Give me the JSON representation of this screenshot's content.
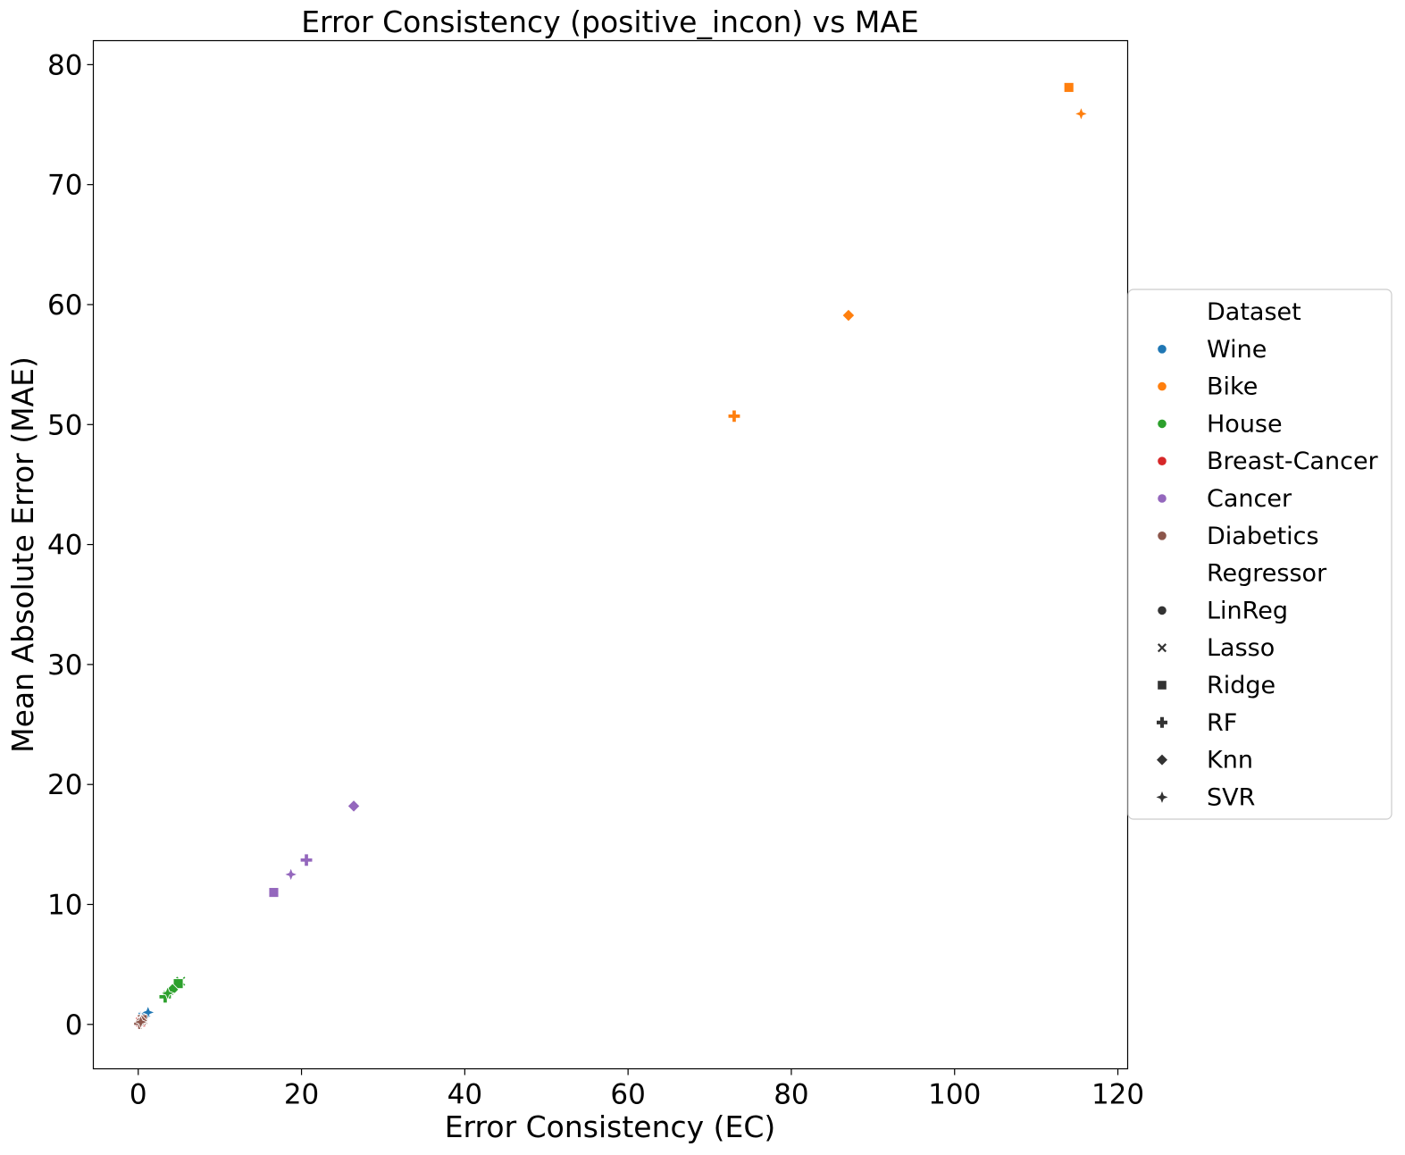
{
  "chart_data": {
    "type": "scatter",
    "title": "Error Consistency (positive_incon) vs MAE",
    "xlabel": "Error Consistency (EC)",
    "ylabel": "Mean Absolute Error (MAE)",
    "xlim": [
      -5.5,
      121.2
    ],
    "ylim": [
      -3.7,
      82.0
    ],
    "xticks": [
      0,
      20,
      40,
      60,
      80,
      100,
      120
    ],
    "yticks": [
      0,
      10,
      20,
      30,
      40,
      50,
      60,
      70,
      80
    ],
    "grid": false,
    "legend_placement": "right",
    "legend": {
      "hue_title": "Dataset",
      "style_title": "Regressor"
    },
    "colors": {
      "Wine": "#1f77b4",
      "Bike": "#ff7f0e",
      "House": "#2ca02c",
      "Breast-Cancer": "#d62728",
      "Cancer": "#9467bd",
      "Diabetics": "#8c564b"
    },
    "marker_legend_color": "#333333",
    "datasets": [
      "Wine",
      "Bike",
      "House",
      "Breast-Cancer",
      "Cancer",
      "Diabetics"
    ],
    "regressors": [
      "LinReg",
      "Lasso",
      "Ridge",
      "RF",
      "Knn",
      "SVR"
    ],
    "markers": {
      "LinReg": "circle",
      "Lasso": "x",
      "Ridge": "square",
      "RF": "plus",
      "Knn": "diamond",
      "SVR": "star"
    },
    "points": [
      {
        "dataset": "Wine",
        "regressor": "LinReg",
        "x": 0.6,
        "y": 0.6
      },
      {
        "dataset": "Wine",
        "regressor": "Lasso",
        "x": 0.7,
        "y": 0.7
      },
      {
        "dataset": "Wine",
        "regressor": "Ridge",
        "x": 0.6,
        "y": 0.6
      },
      {
        "dataset": "Wine",
        "regressor": "RF",
        "x": 0.5,
        "y": 0.5
      },
      {
        "dataset": "Wine",
        "regressor": "Knn",
        "x": 0.8,
        "y": 0.7
      },
      {
        "dataset": "Wine",
        "regressor": "SVR",
        "x": 1.2,
        "y": 1.0
      },
      {
        "dataset": "Bike",
        "regressor": "LinReg",
        "x": 114.0,
        "y": 78.1
      },
      {
        "dataset": "Bike",
        "regressor": "Lasso",
        "x": 114.0,
        "y": 78.1
      },
      {
        "dataset": "Bike",
        "regressor": "Ridge",
        "x": 114.0,
        "y": 78.1
      },
      {
        "dataset": "Bike",
        "regressor": "RF",
        "x": 73.0,
        "y": 50.7
      },
      {
        "dataset": "Bike",
        "regressor": "Knn",
        "x": 87.0,
        "y": 59.1
      },
      {
        "dataset": "Bike",
        "regressor": "SVR",
        "x": 115.5,
        "y": 75.9
      },
      {
        "dataset": "House",
        "regressor": "LinReg",
        "x": 4.9,
        "y": 3.4
      },
      {
        "dataset": "House",
        "regressor": "Lasso",
        "x": 5.2,
        "y": 3.6
      },
      {
        "dataset": "House",
        "regressor": "Ridge",
        "x": 4.9,
        "y": 3.4
      },
      {
        "dataset": "House",
        "regressor": "RF",
        "x": 3.3,
        "y": 2.3
      },
      {
        "dataset": "House",
        "regressor": "Knn",
        "x": 4.2,
        "y": 2.9
      },
      {
        "dataset": "House",
        "regressor": "SVR",
        "x": 3.6,
        "y": 2.6
      },
      {
        "dataset": "Breast-Cancer",
        "regressor": "LinReg",
        "x": 0.3,
        "y": 0.2
      },
      {
        "dataset": "Breast-Cancer",
        "regressor": "Lasso",
        "x": 0.3,
        "y": 0.2
      },
      {
        "dataset": "Breast-Cancer",
        "regressor": "Ridge",
        "x": 0.3,
        "y": 0.2
      },
      {
        "dataset": "Breast-Cancer",
        "regressor": "RF",
        "x": 0.2,
        "y": 0.1
      },
      {
        "dataset": "Breast-Cancer",
        "regressor": "Knn",
        "x": 0.3,
        "y": 0.2
      },
      {
        "dataset": "Breast-Cancer",
        "regressor": "SVR",
        "x": 0.4,
        "y": 0.3
      },
      {
        "dataset": "Cancer",
        "regressor": "LinReg",
        "x": 16.6,
        "y": 11.0
      },
      {
        "dataset": "Cancer",
        "regressor": "Lasso",
        "x": 16.6,
        "y": 11.0
      },
      {
        "dataset": "Cancer",
        "regressor": "Ridge",
        "x": 16.6,
        "y": 11.0
      },
      {
        "dataset": "Cancer",
        "regressor": "RF",
        "x": 20.6,
        "y": 13.7
      },
      {
        "dataset": "Cancer",
        "regressor": "Knn",
        "x": 26.4,
        "y": 18.2
      },
      {
        "dataset": "Cancer",
        "regressor": "SVR",
        "x": 18.7,
        "y": 12.5
      },
      {
        "dataset": "Diabetics",
        "regressor": "LinReg",
        "x": 0.5,
        "y": 0.4
      },
      {
        "dataset": "Diabetics",
        "regressor": "Lasso",
        "x": 0.5,
        "y": 0.4
      },
      {
        "dataset": "Diabetics",
        "regressor": "Ridge",
        "x": 0.5,
        "y": 0.4
      },
      {
        "dataset": "Diabetics",
        "regressor": "RF",
        "x": 0.2,
        "y": 0.1
      },
      {
        "dataset": "Diabetics",
        "regressor": "Knn",
        "x": 0.4,
        "y": 0.3
      },
      {
        "dataset": "Diabetics",
        "regressor": "SVR",
        "x": 0.3,
        "y": 0.2
      }
    ]
  }
}
